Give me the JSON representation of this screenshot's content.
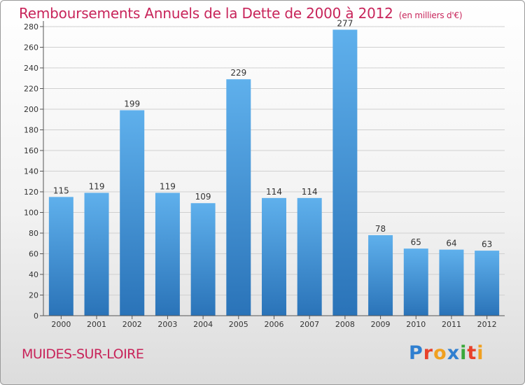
{
  "title": "Remboursements Annuels de la Dette de 2000 à 2012",
  "title_unit": "(en milliers d'€)",
  "commune": "MUIDES-SUR-LOIRE",
  "logo": {
    "text": "Proxiti",
    "letters": [
      {
        "char": "P",
        "color": "#2f7fd0"
      },
      {
        "char": "r",
        "color": "#e8412a"
      },
      {
        "char": "o",
        "color": "#f0a020"
      },
      {
        "char": "x",
        "color": "#2f7fd0"
      },
      {
        "char": "i",
        "color": "#3aa83a"
      },
      {
        "char": "t",
        "color": "#e8412a"
      },
      {
        "char": "i",
        "color": "#f0a020"
      }
    ]
  },
  "chart_data": {
    "type": "bar",
    "categories": [
      "2000",
      "2001",
      "2002",
      "2003",
      "2004",
      "2005",
      "2006",
      "2007",
      "2008",
      "2009",
      "2010",
      "2011",
      "2012"
    ],
    "values": [
      115,
      119,
      199,
      119,
      109,
      229,
      114,
      114,
      277,
      78,
      65,
      64,
      63
    ],
    "ylim": [
      0,
      280
    ],
    "ytick_step": 20,
    "grid": "horizontal",
    "bar_color": "#3d8fd6",
    "bar_color_light": "#5fb0ec",
    "bar_color_dark": "#2a73b8"
  }
}
